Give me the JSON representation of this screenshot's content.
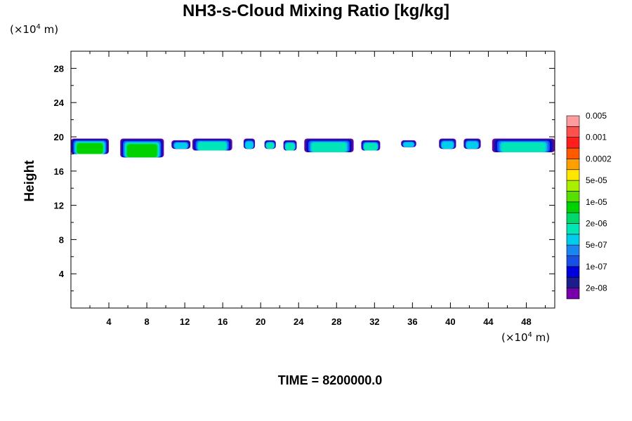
{
  "title": "NH3-s-Cloud Mixing Ratio [kg/kg]",
  "y_unit": {
    "prefix": "(×10",
    "exp": "4",
    "suffix": " m)"
  },
  "x_unit": {
    "prefix": "(×10",
    "exp": "4",
    "suffix": " m)"
  },
  "time_label": "TIME = 8200000.0",
  "chart_data": {
    "type": "heatmap",
    "title": "NH3-s-Cloud Mixing Ratio [kg/kg]",
    "xlabel": "",
    "ylabel": "Height",
    "xlim": [
      0,
      51
    ],
    "ylim": [
      0,
      30
    ],
    "x_ticks": [
      4,
      8,
      12,
      16,
      20,
      24,
      28,
      32,
      36,
      40,
      44,
      48
    ],
    "y_ticks": [
      4,
      8,
      12,
      16,
      20,
      24,
      28
    ],
    "colorbar": {
      "colors": [
        "#7700aa",
        "#1c1c8c",
        "#0000dd",
        "#1a4fe6",
        "#1a84f0",
        "#00cdee",
        "#00e6b8",
        "#00d86e",
        "#00d200",
        "#55e000",
        "#aaee00",
        "#ffe600",
        "#ffa000",
        "#ff5a00",
        "#ff1e1e",
        "#ff5050",
        "#ff9c9c"
      ],
      "labels": [
        "2e-08",
        "1e-07",
        "5e-07",
        "2e-06",
        "1e-05",
        "5e-05",
        "0.0002",
        "0.001",
        "0.005"
      ]
    },
    "cloud_patches": [
      {
        "x0": 0.0,
        "x1": 4.0,
        "y0": 18.0,
        "y1": 19.8,
        "peak": "1e-05"
      },
      {
        "x0": 5.2,
        "x1": 9.8,
        "y0": 17.6,
        "y1": 19.8,
        "peak": "1e-05"
      },
      {
        "x0": 10.6,
        "x1": 12.6,
        "y0": 18.6,
        "y1": 19.6,
        "peak": "5e-07"
      },
      {
        "x0": 12.8,
        "x1": 17.0,
        "y0": 18.4,
        "y1": 19.8,
        "peak": "2e-06"
      },
      {
        "x0": 18.2,
        "x1": 19.4,
        "y0": 18.6,
        "y1": 19.8,
        "peak": "5e-07"
      },
      {
        "x0": 20.4,
        "x1": 21.6,
        "y0": 18.6,
        "y1": 19.6,
        "peak": "2e-06"
      },
      {
        "x0": 22.4,
        "x1": 23.8,
        "y0": 18.4,
        "y1": 19.6,
        "peak": "2e-06"
      },
      {
        "x0": 24.6,
        "x1": 29.8,
        "y0": 18.2,
        "y1": 19.8,
        "peak": "2e-06"
      },
      {
        "x0": 30.6,
        "x1": 32.6,
        "y0": 18.4,
        "y1": 19.6,
        "peak": "2e-06"
      },
      {
        "x0": 34.8,
        "x1": 36.4,
        "y0": 18.8,
        "y1": 19.6,
        "peak": "5e-07"
      },
      {
        "x0": 38.8,
        "x1": 40.6,
        "y0": 18.6,
        "y1": 19.8,
        "peak": "5e-07"
      },
      {
        "x0": 41.4,
        "x1": 43.2,
        "y0": 18.6,
        "y1": 19.8,
        "peak": "5e-07"
      },
      {
        "x0": 44.4,
        "x1": 51.0,
        "y0": 18.2,
        "y1": 19.8,
        "peak": "2e-06"
      }
    ]
  }
}
